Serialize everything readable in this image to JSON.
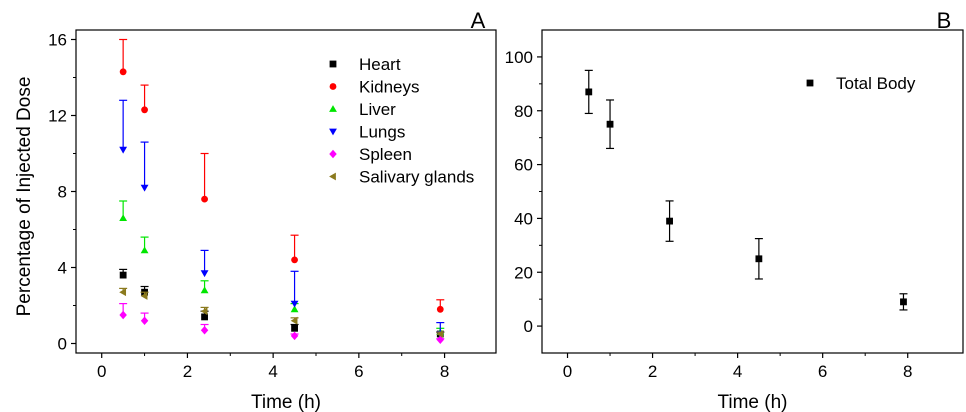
{
  "chart_data": [
    {
      "panel_label": "A",
      "type": "scatter",
      "xlabel": "Time (h)",
      "ylabel": "Percentage of Injected Dose",
      "xlim": [
        -0.6,
        9.2
      ],
      "ylim": [
        -0.5,
        16.5
      ],
      "xticks": [
        0,
        2,
        4,
        6,
        8
      ],
      "yticks": [
        0,
        4,
        8,
        12,
        16
      ],
      "grid": false,
      "legend_position": "top-right",
      "error_bars": "upper",
      "series": [
        {
          "name": "Heart",
          "color": "#000000",
          "marker": "square",
          "x": [
            0.5,
            1,
            2.4,
            4.5,
            7.9
          ],
          "y": [
            3.6,
            2.7,
            1.4,
            0.8,
            0.5
          ],
          "err": [
            0.3,
            0.3,
            0.3,
            0.2,
            0.1
          ]
        },
        {
          "name": "Kidneys",
          "color": "#ff0000",
          "marker": "circle",
          "x": [
            0.5,
            1,
            2.4,
            4.5,
            7.9
          ],
          "y": [
            14.3,
            12.3,
            7.6,
            4.4,
            1.8
          ],
          "err": [
            1.7,
            1.3,
            2.4,
            1.3,
            0.5
          ]
        },
        {
          "name": "Liver",
          "color": "#00e600",
          "marker": "triangle-up",
          "x": [
            0.5,
            1,
            2.4,
            4.5,
            7.9
          ],
          "y": [
            6.6,
            4.9,
            2.8,
            1.8,
            0.6
          ],
          "err": [
            0.9,
            0.7,
            0.5,
            0.3,
            0.2
          ]
        },
        {
          "name": "Lungs",
          "color": "#0000ff",
          "marker": "triangle-down",
          "x": [
            0.5,
            1,
            2.4,
            4.5,
            7.9
          ],
          "y": [
            10.2,
            8.2,
            3.7,
            2.1,
            0.5
          ],
          "err": [
            2.6,
            2.4,
            1.2,
            1.7,
            0.6
          ]
        },
        {
          "name": "Spleen",
          "color": "#ff00ff",
          "marker": "diamond",
          "x": [
            0.5,
            1,
            2.4,
            4.5,
            7.9
          ],
          "y": [
            1.5,
            1.2,
            0.7,
            0.4,
            0.2
          ],
          "err": [
            0.6,
            0.4,
            0.3,
            0.1,
            0.05
          ]
        },
        {
          "name": "Salivary glands",
          "color": "#8b7a1e",
          "marker": "triangle-left",
          "x": [
            0.5,
            1,
            2.4,
            4.5,
            7.9
          ],
          "y": [
            2.7,
            2.5,
            1.7,
            1.2,
            0.5
          ],
          "err": [
            0.2,
            0.2,
            0.2,
            0.15,
            0.1
          ]
        }
      ]
    },
    {
      "panel_label": "B",
      "type": "scatter",
      "xlabel": "Time (h)",
      "ylabel": "",
      "xlim": [
        -0.6,
        9.3
      ],
      "ylim": [
        -10,
        110
      ],
      "xticks": [
        0,
        2,
        4,
        6,
        8
      ],
      "yticks": [
        0,
        20,
        40,
        60,
        80,
        100
      ],
      "grid": false,
      "legend_position": "top-right",
      "error_bars": "symmetric",
      "series": [
        {
          "name": "Total Body",
          "color": "#000000",
          "marker": "square",
          "x": [
            0.5,
            1,
            2.4,
            4.5,
            7.9
          ],
          "y": [
            87,
            75,
            39,
            25,
            9
          ],
          "err": [
            8,
            9,
            7.5,
            7.5,
            3
          ]
        }
      ]
    }
  ]
}
